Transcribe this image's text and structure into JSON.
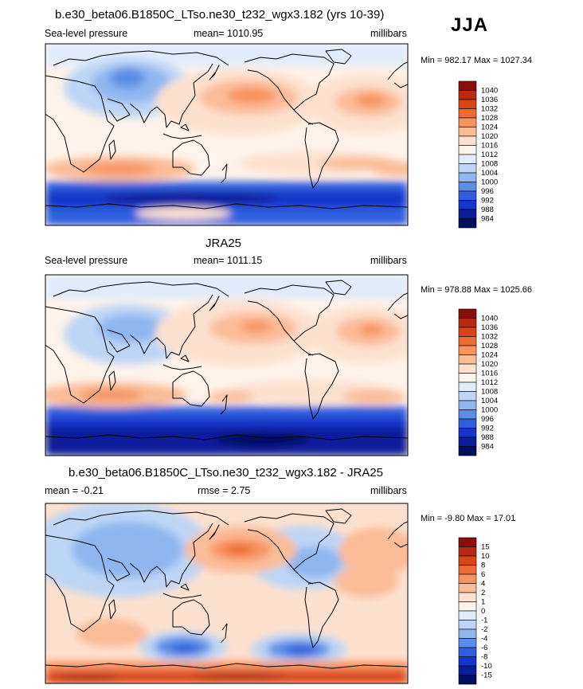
{
  "season": "JJA",
  "panels": [
    {
      "title": "b.e30_beta06.B1850C_LTso.ne30_t232_wgx3.182 (yrs 10-39)",
      "left": "Sea-level pressure",
      "center": "mean= 1010.95",
      "right": "millibars",
      "minmax": "Min = 982.17 Max = 1027.34",
      "colorbar": {
        "labels": [
          "1040",
          "1036",
          "1032",
          "1028",
          "1024",
          "1020",
          "1016",
          "1012",
          "1008",
          "1004",
          "1000",
          "996",
          "992",
          "988",
          "984"
        ],
        "colors": [
          "#8b0d0d",
          "#b52a10",
          "#d94418",
          "#ee6a33",
          "#f7935e",
          "#fbbc98",
          "#fde1cf",
          "#fff3ea",
          "#e0ecfb",
          "#bdd6f6",
          "#8fb6ef",
          "#5b8de6",
          "#2f5fde",
          "#1534c9",
          "#0a1e9a",
          "#000f5e"
        ]
      }
    },
    {
      "title": "JRA25",
      "left": "Sea-level pressure",
      "center": "mean= 1011.15",
      "right": "millibars",
      "minmax": "Min = 978.88 Max = 1025.66",
      "colorbar": {
        "labels": [
          "1040",
          "1036",
          "1032",
          "1028",
          "1024",
          "1020",
          "1016",
          "1012",
          "1008",
          "1004",
          "1000",
          "996",
          "992",
          "988",
          "984"
        ],
        "colors": [
          "#8b0d0d",
          "#b52a10",
          "#d94418",
          "#ee6a33",
          "#f7935e",
          "#fbbc98",
          "#fde1cf",
          "#fff3ea",
          "#e0ecfb",
          "#bdd6f6",
          "#8fb6ef",
          "#5b8de6",
          "#2f5fde",
          "#1534c9",
          "#0a1e9a",
          "#000f5e"
        ]
      }
    },
    {
      "title": "b.e30_beta06.B1850C_LTso.ne30_t232_wgx3.182 - JRA25",
      "left": "mean =  -0.21",
      "center": "rmse =   2.75",
      "right": "millibars",
      "minmax": "Min =  -9.80 Max =  17.01",
      "colorbar": {
        "labels": [
          "15",
          "10",
          "8",
          "6",
          "4",
          "2",
          "1",
          "0",
          "-1",
          "-2",
          "-4",
          "-6",
          "-8",
          "-10",
          "-15"
        ],
        "colors": [
          "#8b0d0d",
          "#b52a10",
          "#d94418",
          "#ee6a33",
          "#f7935e",
          "#fbbc98",
          "#fde1cf",
          "#fff3ea",
          "#e0ecfb",
          "#bdd6f6",
          "#8fb6ef",
          "#5b8de6",
          "#2f5fde",
          "#1534c9",
          "#0a1e9a",
          "#000f5e"
        ]
      }
    }
  ]
}
